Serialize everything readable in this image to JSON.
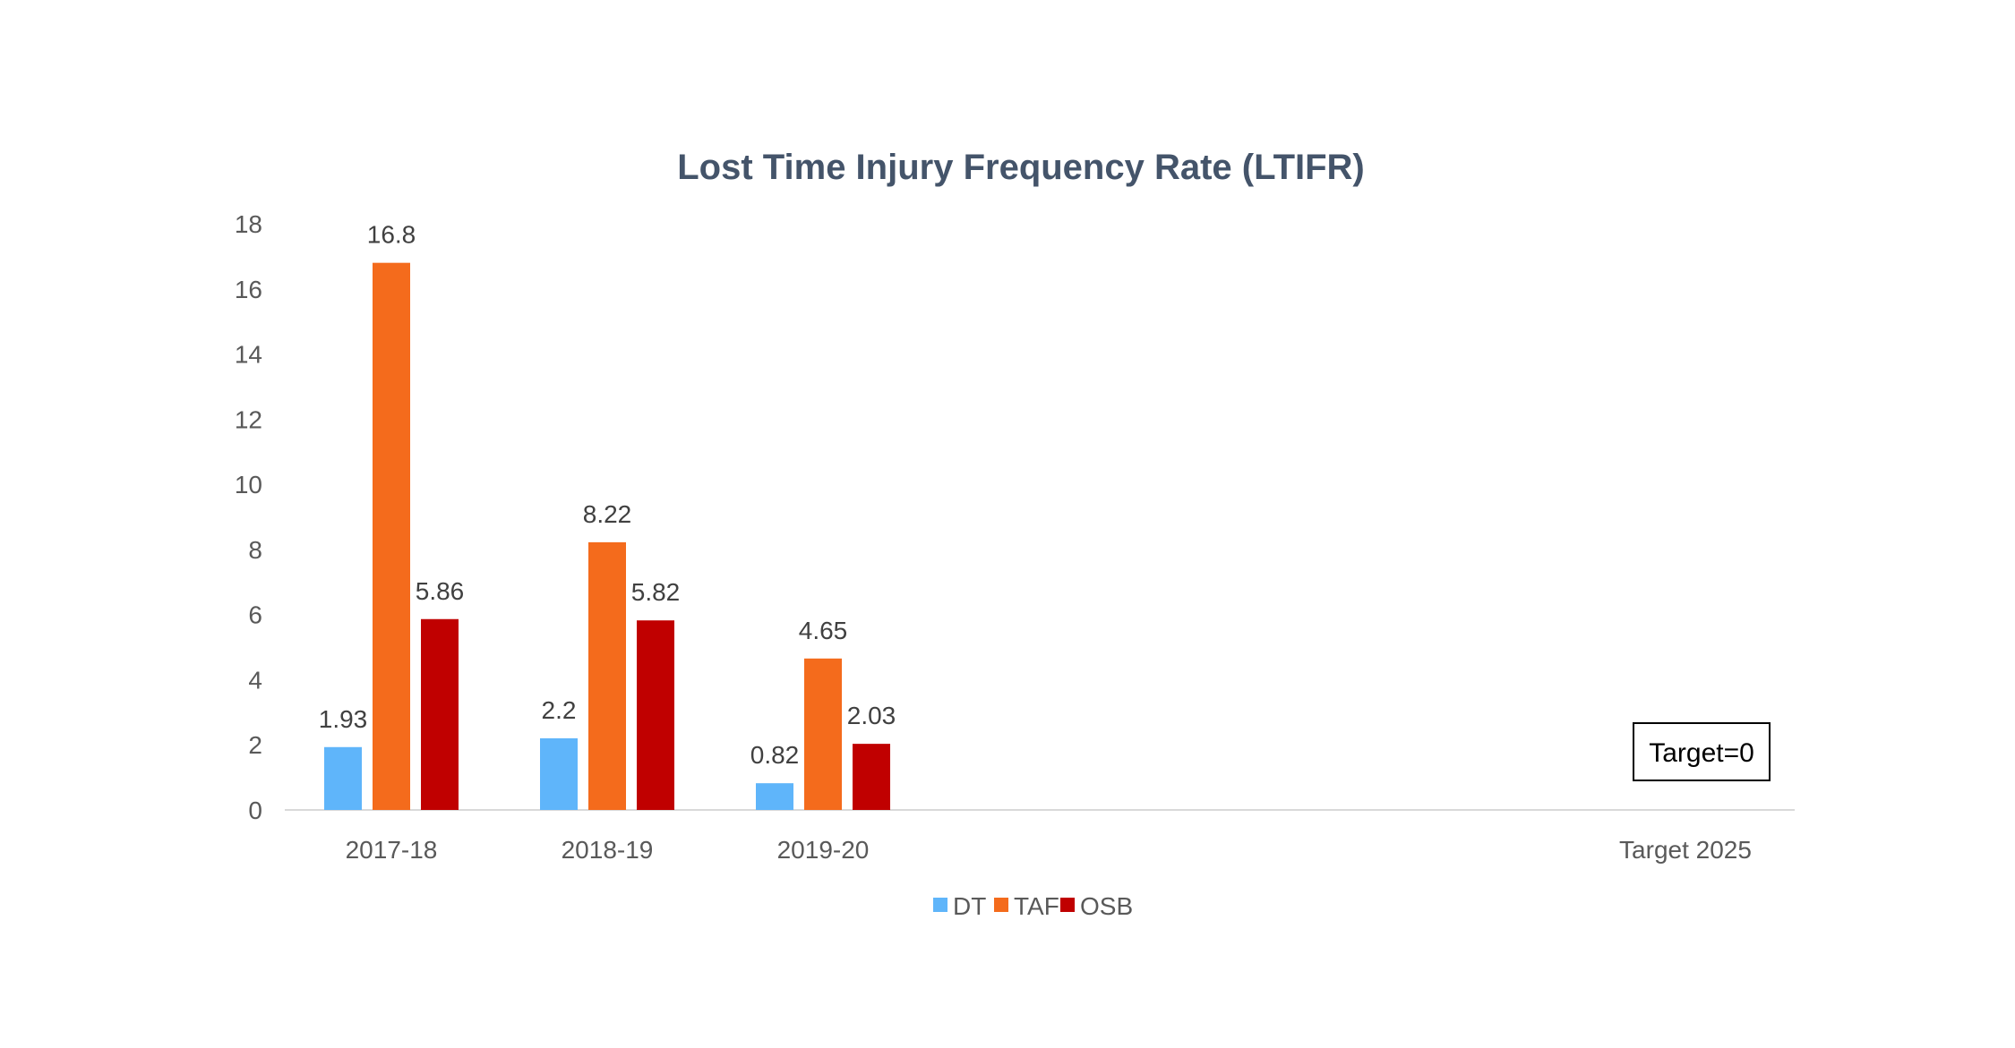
{
  "chart_data": {
    "type": "bar",
    "title": "Lost Time Injury Frequency Rate (LTIFR)",
    "categories": [
      "2017-18",
      "2018-19",
      "2019-20",
      "Target 2025"
    ],
    "series": [
      {
        "name": "DT",
        "color": "#5fb5fa",
        "values": [
          1.93,
          2.2,
          0.82,
          null
        ],
        "labels": [
          "1.93",
          "2.2",
          "0.82",
          ""
        ]
      },
      {
        "name": "TAF",
        "color": "#f46b1c",
        "values": [
          16.8,
          8.22,
          4.65,
          null
        ],
        "labels": [
          "16.8",
          "8.22",
          "4.65",
          ""
        ]
      },
      {
        "name": "OSB",
        "color": "#c00000",
        "values": [
          5.86,
          5.82,
          2.03,
          null
        ],
        "labels": [
          "5.86",
          "5.82",
          "2.03",
          ""
        ]
      }
    ],
    "y_ticks": [
      "0",
      "2",
      "4",
      "6",
      "8",
      "10",
      "12",
      "14",
      "16",
      "18"
    ],
    "ylim": [
      0,
      18
    ],
    "grid": false,
    "legend_position": "bottom",
    "annotation": "Target=0"
  }
}
